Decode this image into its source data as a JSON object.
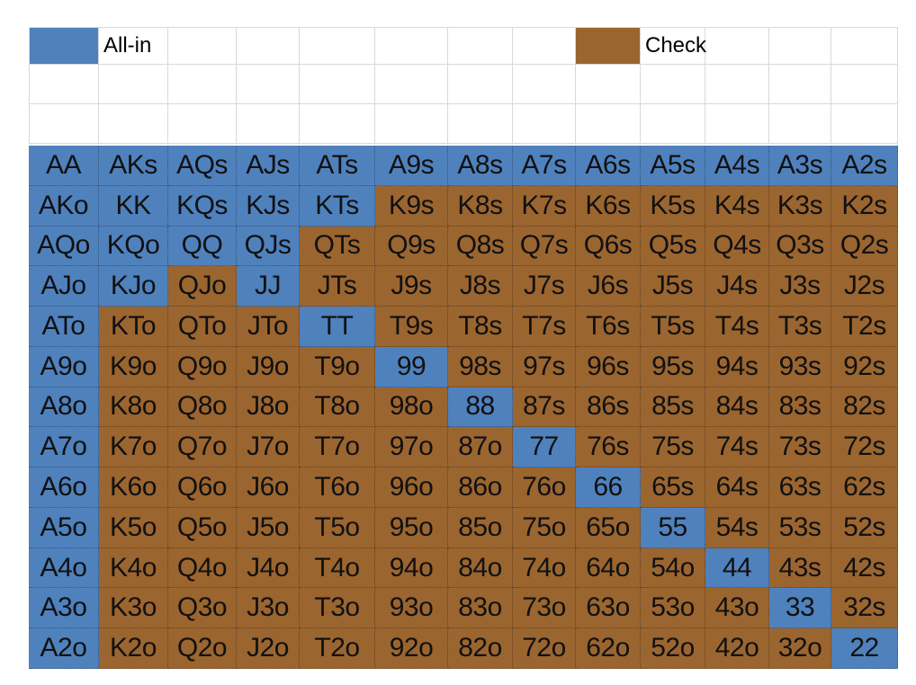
{
  "legend": {
    "allin_label": "All-in",
    "check_label": "Check",
    "allin_color": "#4f81bd",
    "check_color": "#9b6530"
  },
  "range": {
    "rows": [
      [
        "AA",
        "AKs",
        "AQs",
        "AJs",
        "ATs",
        "A9s",
        "A8s",
        "A7s",
        "A6s",
        "A5s",
        "A4s",
        "A3s",
        "A2s"
      ],
      [
        "AKo",
        "KK",
        "KQs",
        "KJs",
        "KTs",
        "K9s",
        "K8s",
        "K7s",
        "K6s",
        "K5s",
        "K4s",
        "K3s",
        "K2s"
      ],
      [
        "AQo",
        "KQo",
        "QQ",
        "QJs",
        "QTs",
        "Q9s",
        "Q8s",
        "Q7s",
        "Q6s",
        "Q5s",
        "Q4s",
        "Q3s",
        "Q2s"
      ],
      [
        "AJo",
        "KJo",
        "QJo",
        "JJ",
        "JTs",
        "J9s",
        "J8s",
        "J7s",
        "J6s",
        "J5s",
        "J4s",
        "J3s",
        "J2s"
      ],
      [
        "ATo",
        "KTo",
        "QTo",
        "JTo",
        "TT",
        "T9s",
        "T8s",
        "T7s",
        "T6s",
        "T5s",
        "T4s",
        "T3s",
        "T2s"
      ],
      [
        "A9o",
        "K9o",
        "Q9o",
        "J9o",
        "T9o",
        "99",
        "98s",
        "97s",
        "96s",
        "95s",
        "94s",
        "93s",
        "92s"
      ],
      [
        "A8o",
        "K8o",
        "Q8o",
        "J8o",
        "T8o",
        "98o",
        "88",
        "87s",
        "86s",
        "85s",
        "84s",
        "83s",
        "82s"
      ],
      [
        "A7o",
        "K7o",
        "Q7o",
        "J7o",
        "T7o",
        "97o",
        "87o",
        "77",
        "76s",
        "75s",
        "74s",
        "73s",
        "72s"
      ],
      [
        "A6o",
        "K6o",
        "Q6o",
        "J6o",
        "T6o",
        "96o",
        "86o",
        "76o",
        "66",
        "65s",
        "64s",
        "63s",
        "62s"
      ],
      [
        "A5o",
        "K5o",
        "Q5o",
        "J5o",
        "T5o",
        "95o",
        "85o",
        "75o",
        "65o",
        "55",
        "54s",
        "53s",
        "52s"
      ],
      [
        "A4o",
        "K4o",
        "Q4o",
        "J4o",
        "T4o",
        "94o",
        "84o",
        "74o",
        "64o",
        "54o",
        "44",
        "43s",
        "42s"
      ],
      [
        "A3o",
        "K3o",
        "Q3o",
        "J3o",
        "T3o",
        "93o",
        "83o",
        "73o",
        "63o",
        "53o",
        "43o",
        "33",
        "32s"
      ],
      [
        "A2o",
        "K2o",
        "Q2o",
        "J2o",
        "T2o",
        "92o",
        "82o",
        "72o",
        "62o",
        "52o",
        "42o",
        "32o",
        "22"
      ]
    ],
    "actions": [
      [
        "all-in",
        "all-in",
        "all-in",
        "all-in",
        "all-in",
        "all-in",
        "all-in",
        "all-in",
        "all-in",
        "all-in",
        "all-in",
        "all-in",
        "all-in"
      ],
      [
        "all-in",
        "all-in",
        "all-in",
        "all-in",
        "all-in",
        "check",
        "check",
        "check",
        "check",
        "check",
        "check",
        "check",
        "check"
      ],
      [
        "all-in",
        "all-in",
        "all-in",
        "all-in",
        "check",
        "check",
        "check",
        "check",
        "check",
        "check",
        "check",
        "check",
        "check"
      ],
      [
        "all-in",
        "all-in",
        "check",
        "all-in",
        "check",
        "check",
        "check",
        "check",
        "check",
        "check",
        "check",
        "check",
        "check"
      ],
      [
        "all-in",
        "check",
        "check",
        "check",
        "all-in",
        "check",
        "check",
        "check",
        "check",
        "check",
        "check",
        "check",
        "check"
      ],
      [
        "all-in",
        "check",
        "check",
        "check",
        "check",
        "all-in",
        "check",
        "check",
        "check",
        "check",
        "check",
        "check",
        "check"
      ],
      [
        "all-in",
        "check",
        "check",
        "check",
        "check",
        "check",
        "all-in",
        "check",
        "check",
        "check",
        "check",
        "check",
        "check"
      ],
      [
        "all-in",
        "check",
        "check",
        "check",
        "check",
        "check",
        "check",
        "all-in",
        "check",
        "check",
        "check",
        "check",
        "check"
      ],
      [
        "all-in",
        "check",
        "check",
        "check",
        "check",
        "check",
        "check",
        "check",
        "all-in",
        "check",
        "check",
        "check",
        "check"
      ],
      [
        "all-in",
        "check",
        "check",
        "check",
        "check",
        "check",
        "check",
        "check",
        "check",
        "all-in",
        "check",
        "check",
        "check"
      ],
      [
        "all-in",
        "check",
        "check",
        "check",
        "check",
        "check",
        "check",
        "check",
        "check",
        "check",
        "all-in",
        "check",
        "check"
      ],
      [
        "all-in",
        "check",
        "check",
        "check",
        "check",
        "check",
        "check",
        "check",
        "check",
        "check",
        "check",
        "all-in",
        "check"
      ],
      [
        "all-in",
        "check",
        "check",
        "check",
        "check",
        "check",
        "check",
        "check",
        "check",
        "check",
        "check",
        "check",
        "all-in"
      ]
    ]
  }
}
